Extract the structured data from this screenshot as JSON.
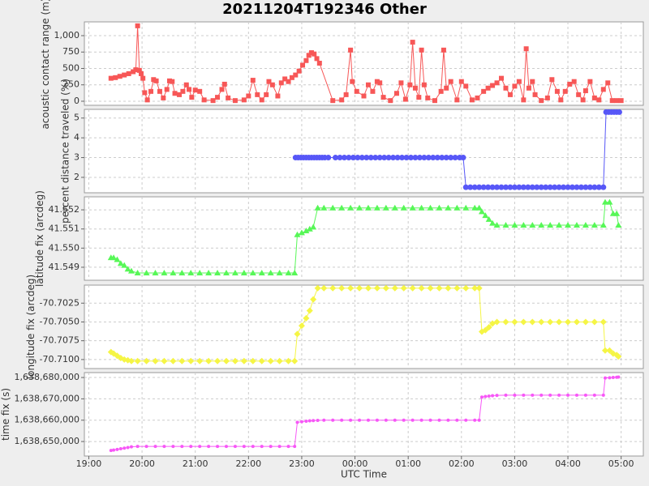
{
  "chart_data": [
    {
      "type": "line",
      "title": "20211204T192346 Other",
      "ylabel": "acoustic contact range (m)",
      "color": "#f75757",
      "marker": "square",
      "grid": true,
      "ylim": [
        -62,
        1210
      ],
      "yticks": [
        0,
        250,
        500,
        750,
        {
          "value": 1000,
          "label": "1,000"
        }
      ],
      "x": [
        "19:25",
        "19:30",
        "19:35",
        "19:40",
        "19:45",
        "19:50",
        "19:53",
        "19:55",
        "19:57",
        "19:59",
        "20:01",
        "20:03",
        "20:06",
        "20:10",
        "20:13",
        "20:16",
        "20:20",
        "20:24",
        "20:28",
        "20:31",
        "20:34",
        "20:37",
        "20:42",
        "20:46",
        "20:50",
        "20:53",
        "20:56",
        "21:00",
        "21:05",
        "21:10",
        "21:20",
        "21:25",
        "21:30",
        "21:33",
        "21:37",
        "21:45",
        "21:55",
        "22:00",
        "22:05",
        "22:10",
        "22:15",
        "22:20",
        "22:23",
        "22:27",
        "22:33",
        "22:37",
        "22:41",
        "22:45",
        "22:49",
        "22:53",
        "22:57",
        "23:01",
        "23:05",
        "23:08",
        "23:11",
        "23:14",
        "23:17",
        "23:20",
        "23:35",
        "23:45",
        "23:50",
        "23:55",
        "23:57",
        "00:02",
        "00:10",
        "00:15",
        "00:20",
        "00:25",
        "00:28",
        "00:32",
        "00:40",
        "00:47",
        "00:52",
        "00:57",
        "01:02",
        "01:05",
        "01:08",
        "01:12",
        "01:15",
        "01:18",
        "01:22",
        "01:30",
        "01:37",
        "01:40",
        "01:43",
        "01:48",
        "01:55",
        "02:00",
        "02:05",
        "02:12",
        "02:18",
        "02:25",
        "02:30",
        "02:35",
        "02:40",
        "02:45",
        "02:50",
        "02:55",
        "03:00",
        "03:05",
        "03:10",
        "03:13",
        "03:16",
        "03:20",
        "03:23",
        "03:30",
        "03:37",
        "03:42",
        "03:48",
        "03:52",
        "03:57",
        "04:02",
        "04:07",
        "04:12",
        "04:17",
        "04:20",
        "04:25",
        "04:30",
        "04:35",
        "04:40",
        "04:45",
        "04:50",
        "04:55",
        "05:00"
      ],
      "values": [
        350,
        360,
        380,
        400,
        420,
        450,
        480,
        1150,
        470,
        420,
        350,
        130,
        20,
        150,
        330,
        310,
        150,
        50,
        180,
        310,
        300,
        120,
        100,
        150,
        250,
        180,
        60,
        170,
        150,
        20,
        10,
        60,
        180,
        260,
        50,
        10,
        20,
        80,
        320,
        100,
        20,
        100,
        300,
        250,
        80,
        280,
        340,
        300,
        360,
        400,
        460,
        550,
        620,
        700,
        740,
        720,
        650,
        580,
        10,
        20,
        100,
        780,
        300,
        150,
        80,
        250,
        150,
        300,
        280,
        60,
        10,
        120,
        280,
        30,
        250,
        900,
        200,
        60,
        780,
        250,
        50,
        10,
        150,
        780,
        200,
        300,
        20,
        300,
        230,
        20,
        50,
        150,
        200,
        240,
        280,
        350,
        200,
        100,
        230,
        300,
        20,
        800,
        200,
        300,
        100,
        10,
        50,
        330,
        150,
        20,
        150,
        260,
        300,
        100,
        20,
        160,
        300,
        50,
        20,
        180,
        280,
        10,
        10,
        10
      ]
    },
    {
      "type": "line",
      "ylabel": "percent distance traveled (%)",
      "color": "#5757f7",
      "marker": "circle",
      "grid": true,
      "ylim": [
        1.22,
        5.44
      ],
      "yticks": [
        2,
        3,
        4,
        5
      ],
      "x": [
        "22:53",
        "22:56",
        "22:59",
        "23:02",
        "23:05",
        "23:08",
        "23:11",
        "23:14",
        "23:17",
        "23:20",
        "23:23",
        "23:26",
        "23:30",
        "23:38",
        "23:43",
        "23:48",
        "23:53",
        "23:58",
        "00:03",
        "00:08",
        "00:13",
        "00:18",
        "00:23",
        "00:28",
        "00:33",
        "00:38",
        "00:43",
        "00:48",
        "00:53",
        "00:58",
        "01:03",
        "01:08",
        "01:13",
        "01:18",
        "01:23",
        "01:28",
        "01:33",
        "01:38",
        "01:43",
        "01:48",
        "01:53",
        "01:58",
        "02:02",
        "02:05",
        "02:10",
        "02:15",
        "02:20",
        "02:25",
        "02:30",
        "02:35",
        "02:40",
        "02:45",
        "02:50",
        "02:55",
        "03:00",
        "03:05",
        "03:10",
        "03:15",
        "03:20",
        "03:25",
        "03:30",
        "03:35",
        "03:40",
        "03:45",
        "03:50",
        "03:55",
        "04:00",
        "04:05",
        "04:10",
        "04:15",
        "04:20",
        "04:25",
        "04:30",
        "04:35",
        "04:40",
        "04:43",
        "04:46",
        "04:49",
        "04:52",
        "04:55",
        "04:58"
      ],
      "values": [
        3,
        3,
        3,
        3,
        3,
        3,
        3,
        3,
        3,
        3,
        3,
        3,
        3,
        3,
        3,
        3,
        3,
        3,
        3,
        3,
        3,
        3,
        3,
        3,
        3,
        3,
        3,
        3,
        3,
        3,
        3,
        3,
        3,
        3,
        3,
        3,
        3,
        3,
        3,
        3,
        3,
        3,
        3,
        1.5,
        1.5,
        1.5,
        1.5,
        1.5,
        1.5,
        1.5,
        1.5,
        1.5,
        1.5,
        1.5,
        1.5,
        1.5,
        1.5,
        1.5,
        1.5,
        1.5,
        1.5,
        1.5,
        1.5,
        1.5,
        1.5,
        1.5,
        1.5,
        1.5,
        1.5,
        1.5,
        1.5,
        1.5,
        1.5,
        1.5,
        1.5,
        5.3,
        5.3,
        5.3,
        5.3,
        5.3,
        5.3
      ]
    },
    {
      "type": "line",
      "ylabel": "latitude fix (arcdeg)",
      "color": "#57f757",
      "marker": "triangle",
      "grid": true,
      "ylim": [
        41.54832,
        41.55268
      ],
      "yticks": [
        41.549,
        {
          "value": 41.55,
          "label": "41.550"
        },
        41.551,
        41.552
      ],
      "x": [
        "19:25",
        "19:28",
        "19:32",
        "19:36",
        "19:40",
        "19:44",
        "19:48",
        "19:55",
        "20:05",
        "20:15",
        "20:25",
        "20:35",
        "20:45",
        "20:55",
        "21:05",
        "21:15",
        "21:25",
        "21:35",
        "21:45",
        "21:55",
        "22:05",
        "22:15",
        "22:25",
        "22:35",
        "22:45",
        "22:52",
        "22:55",
        "23:00",
        "23:05",
        "23:09",
        "23:13",
        "23:18",
        "23:25",
        "23:35",
        "23:45",
        "23:55",
        "00:05",
        "00:15",
        "00:25",
        "00:35",
        "00:45",
        "00:55",
        "01:05",
        "01:15",
        "01:25",
        "01:35",
        "01:45",
        "01:55",
        "02:05",
        "02:15",
        "02:20",
        "02:23",
        "02:27",
        "02:31",
        "02:35",
        "02:40",
        "02:50",
        "03:00",
        "03:10",
        "03:20",
        "03:30",
        "03:40",
        "03:50",
        "04:00",
        "04:10",
        "04:20",
        "04:30",
        "04:40",
        "04:42",
        "04:47",
        "04:51",
        "04:55",
        "04:57"
      ],
      "values": [
        41.5495,
        41.5495,
        41.5494,
        41.5492,
        41.5491,
        41.5489,
        41.5488,
        41.5487,
        41.5487,
        41.5487,
        41.5487,
        41.5487,
        41.5487,
        41.5487,
        41.5487,
        41.5487,
        41.5487,
        41.5487,
        41.5487,
        41.5487,
        41.5487,
        41.5487,
        41.5487,
        41.5487,
        41.5487,
        41.5487,
        41.5507,
        41.5508,
        41.5509,
        41.551,
        41.5511,
        41.5521,
        41.5521,
        41.5521,
        41.5521,
        41.5521,
        41.5521,
        41.5521,
        41.5521,
        41.5521,
        41.5521,
        41.5521,
        41.5521,
        41.5521,
        41.5521,
        41.5521,
        41.5521,
        41.5521,
        41.5521,
        41.5521,
        41.5521,
        41.5519,
        41.5517,
        41.5515,
        41.5513,
        41.5512,
        41.5512,
        41.5512,
        41.5512,
        41.5512,
        41.5512,
        41.5512,
        41.5512,
        41.5512,
        41.5512,
        41.5512,
        41.5512,
        41.5512,
        41.5524,
        41.5524,
        41.5518,
        41.5518,
        41.5512
      ]
    },
    {
      "type": "line",
      "ylabel": "longitude fix (arcdeg)",
      "color": "#f5f545",
      "marker": "diamond",
      "grid": true,
      "ylim": [
        -70.7112,
        -70.7001
      ],
      "yticks": [
        {
          "value": -70.71,
          "label": "-70.7100"
        },
        -70.7075,
        {
          "value": -70.705,
          "label": "-70.7050"
        },
        -70.7025
      ],
      "x": [
        "19:25",
        "19:28",
        "19:32",
        "19:36",
        "19:40",
        "19:44",
        "19:48",
        "19:55",
        "20:05",
        "20:15",
        "20:25",
        "20:35",
        "20:45",
        "20:55",
        "21:05",
        "21:15",
        "21:25",
        "21:35",
        "21:45",
        "21:55",
        "22:05",
        "22:15",
        "22:25",
        "22:35",
        "22:45",
        "22:52",
        "22:55",
        "23:00",
        "23:05",
        "23:09",
        "23:13",
        "23:18",
        "23:25",
        "23:35",
        "23:45",
        "23:55",
        "00:05",
        "00:15",
        "00:25",
        "00:35",
        "00:45",
        "00:55",
        "01:05",
        "01:15",
        "01:25",
        "01:35",
        "01:45",
        "01:55",
        "02:05",
        "02:15",
        "02:20",
        "02:23",
        "02:27",
        "02:31",
        "02:35",
        "02:40",
        "02:50",
        "03:00",
        "03:10",
        "03:20",
        "03:30",
        "03:40",
        "03:50",
        "04:00",
        "04:10",
        "04:20",
        "04:30",
        "04:40",
        "04:42",
        "04:47",
        "04:51",
        "04:55",
        "04:57"
      ],
      "values": [
        -70.709,
        -70.7092,
        -70.7095,
        -70.7098,
        -70.71,
        -70.7101,
        -70.7102,
        -70.7102,
        -70.7102,
        -70.7102,
        -70.7102,
        -70.7102,
        -70.7102,
        -70.7102,
        -70.7102,
        -70.7102,
        -70.7102,
        -70.7102,
        -70.7102,
        -70.7102,
        -70.7102,
        -70.7102,
        -70.7102,
        -70.7102,
        -70.7102,
        -70.7102,
        -70.7066,
        -70.7055,
        -70.7045,
        -70.7035,
        -70.702,
        -70.7005,
        -70.7005,
        -70.7005,
        -70.7005,
        -70.7005,
        -70.7005,
        -70.7005,
        -70.7005,
        -70.7005,
        -70.7005,
        -70.7005,
        -70.7005,
        -70.7005,
        -70.7005,
        -70.7005,
        -70.7005,
        -70.7005,
        -70.7005,
        -70.7005,
        -70.7005,
        -70.7063,
        -70.7061,
        -70.7057,
        -70.7052,
        -70.705,
        -70.705,
        -70.705,
        -70.705,
        -70.705,
        -70.705,
        -70.705,
        -70.705,
        -70.705,
        -70.705,
        -70.705,
        -70.705,
        -70.705,
        -70.7088,
        -70.7088,
        -70.7092,
        -70.7094,
        -70.7096
      ]
    },
    {
      "type": "line",
      "ylabel": "time fix (s)",
      "xlabel": "UTC Time",
      "color": "#f757f7",
      "marker": "dot",
      "grid": true,
      "ylim": [
        1638643200,
        1638682300
      ],
      "yticks": [
        {
          "value": 1638650000,
          "label": "1,638,650,000"
        },
        {
          "value": 1638660000,
          "label": "1,638,660,000"
        },
        {
          "value": 1638670000,
          "label": "1,638,670,000"
        },
        {
          "value": 1638680000,
          "label": "1,638,680,000"
        }
      ],
      "xlim": [
        "18:55",
        "05:25"
      ],
      "xticks": [
        "19:00",
        "20:00",
        "21:00",
        "22:00",
        "23:00",
        "00:00",
        "01:00",
        "02:00",
        "03:00",
        "04:00",
        "05:00"
      ],
      "x": [
        "19:25",
        "19:28",
        "19:32",
        "19:36",
        "19:40",
        "19:44",
        "19:48",
        "19:55",
        "20:05",
        "20:15",
        "20:25",
        "20:35",
        "20:45",
        "20:55",
        "21:05",
        "21:15",
        "21:25",
        "21:35",
        "21:45",
        "21:55",
        "22:05",
        "22:15",
        "22:25",
        "22:35",
        "22:45",
        "22:52",
        "22:55",
        "23:00",
        "23:05",
        "23:09",
        "23:13",
        "23:18",
        "23:25",
        "23:35",
        "23:45",
        "23:55",
        "00:05",
        "00:15",
        "00:25",
        "00:35",
        "00:45",
        "00:55",
        "01:05",
        "01:15",
        "01:25",
        "01:35",
        "01:45",
        "01:55",
        "02:05",
        "02:15",
        "02:20",
        "02:23",
        "02:27",
        "02:31",
        "02:35",
        "02:40",
        "02:50",
        "03:00",
        "03:10",
        "03:20",
        "03:30",
        "03:40",
        "03:50",
        "04:00",
        "04:10",
        "04:20",
        "04:30",
        "04:40",
        "04:42",
        "04:47",
        "04:51",
        "04:55",
        "04:57"
      ],
      "values": [
        1638645800,
        1638646000,
        1638646300,
        1638646600,
        1638646900,
        1638647200,
        1638647500,
        1638647700,
        1638647700,
        1638647700,
        1638647700,
        1638647700,
        1638647700,
        1638647700,
        1638647700,
        1638647700,
        1638647700,
        1638647700,
        1638647700,
        1638647700,
        1638647700,
        1638647700,
        1638647700,
        1638647700,
        1638647700,
        1638647700,
        1638659000,
        1638659300,
        1638659500,
        1638659700,
        1638659800,
        1638659900,
        1638660000,
        1638660000,
        1638660000,
        1638660000,
        1638660000,
        1638660000,
        1638660000,
        1638660000,
        1638660000,
        1638660000,
        1638660000,
        1638660000,
        1638660000,
        1638660000,
        1638660000,
        1638660000,
        1638660000,
        1638660000,
        1638660000,
        1638670800,
        1638671100,
        1638671300,
        1638671500,
        1638671600,
        1638671700,
        1638671700,
        1638671700,
        1638671700,
        1638671700,
        1638671700,
        1638671700,
        1638671700,
        1638671700,
        1638671700,
        1638671700,
        1638671700,
        1638679800,
        1638679900,
        1638680000,
        1638680100,
        1638680200
      ]
    }
  ]
}
